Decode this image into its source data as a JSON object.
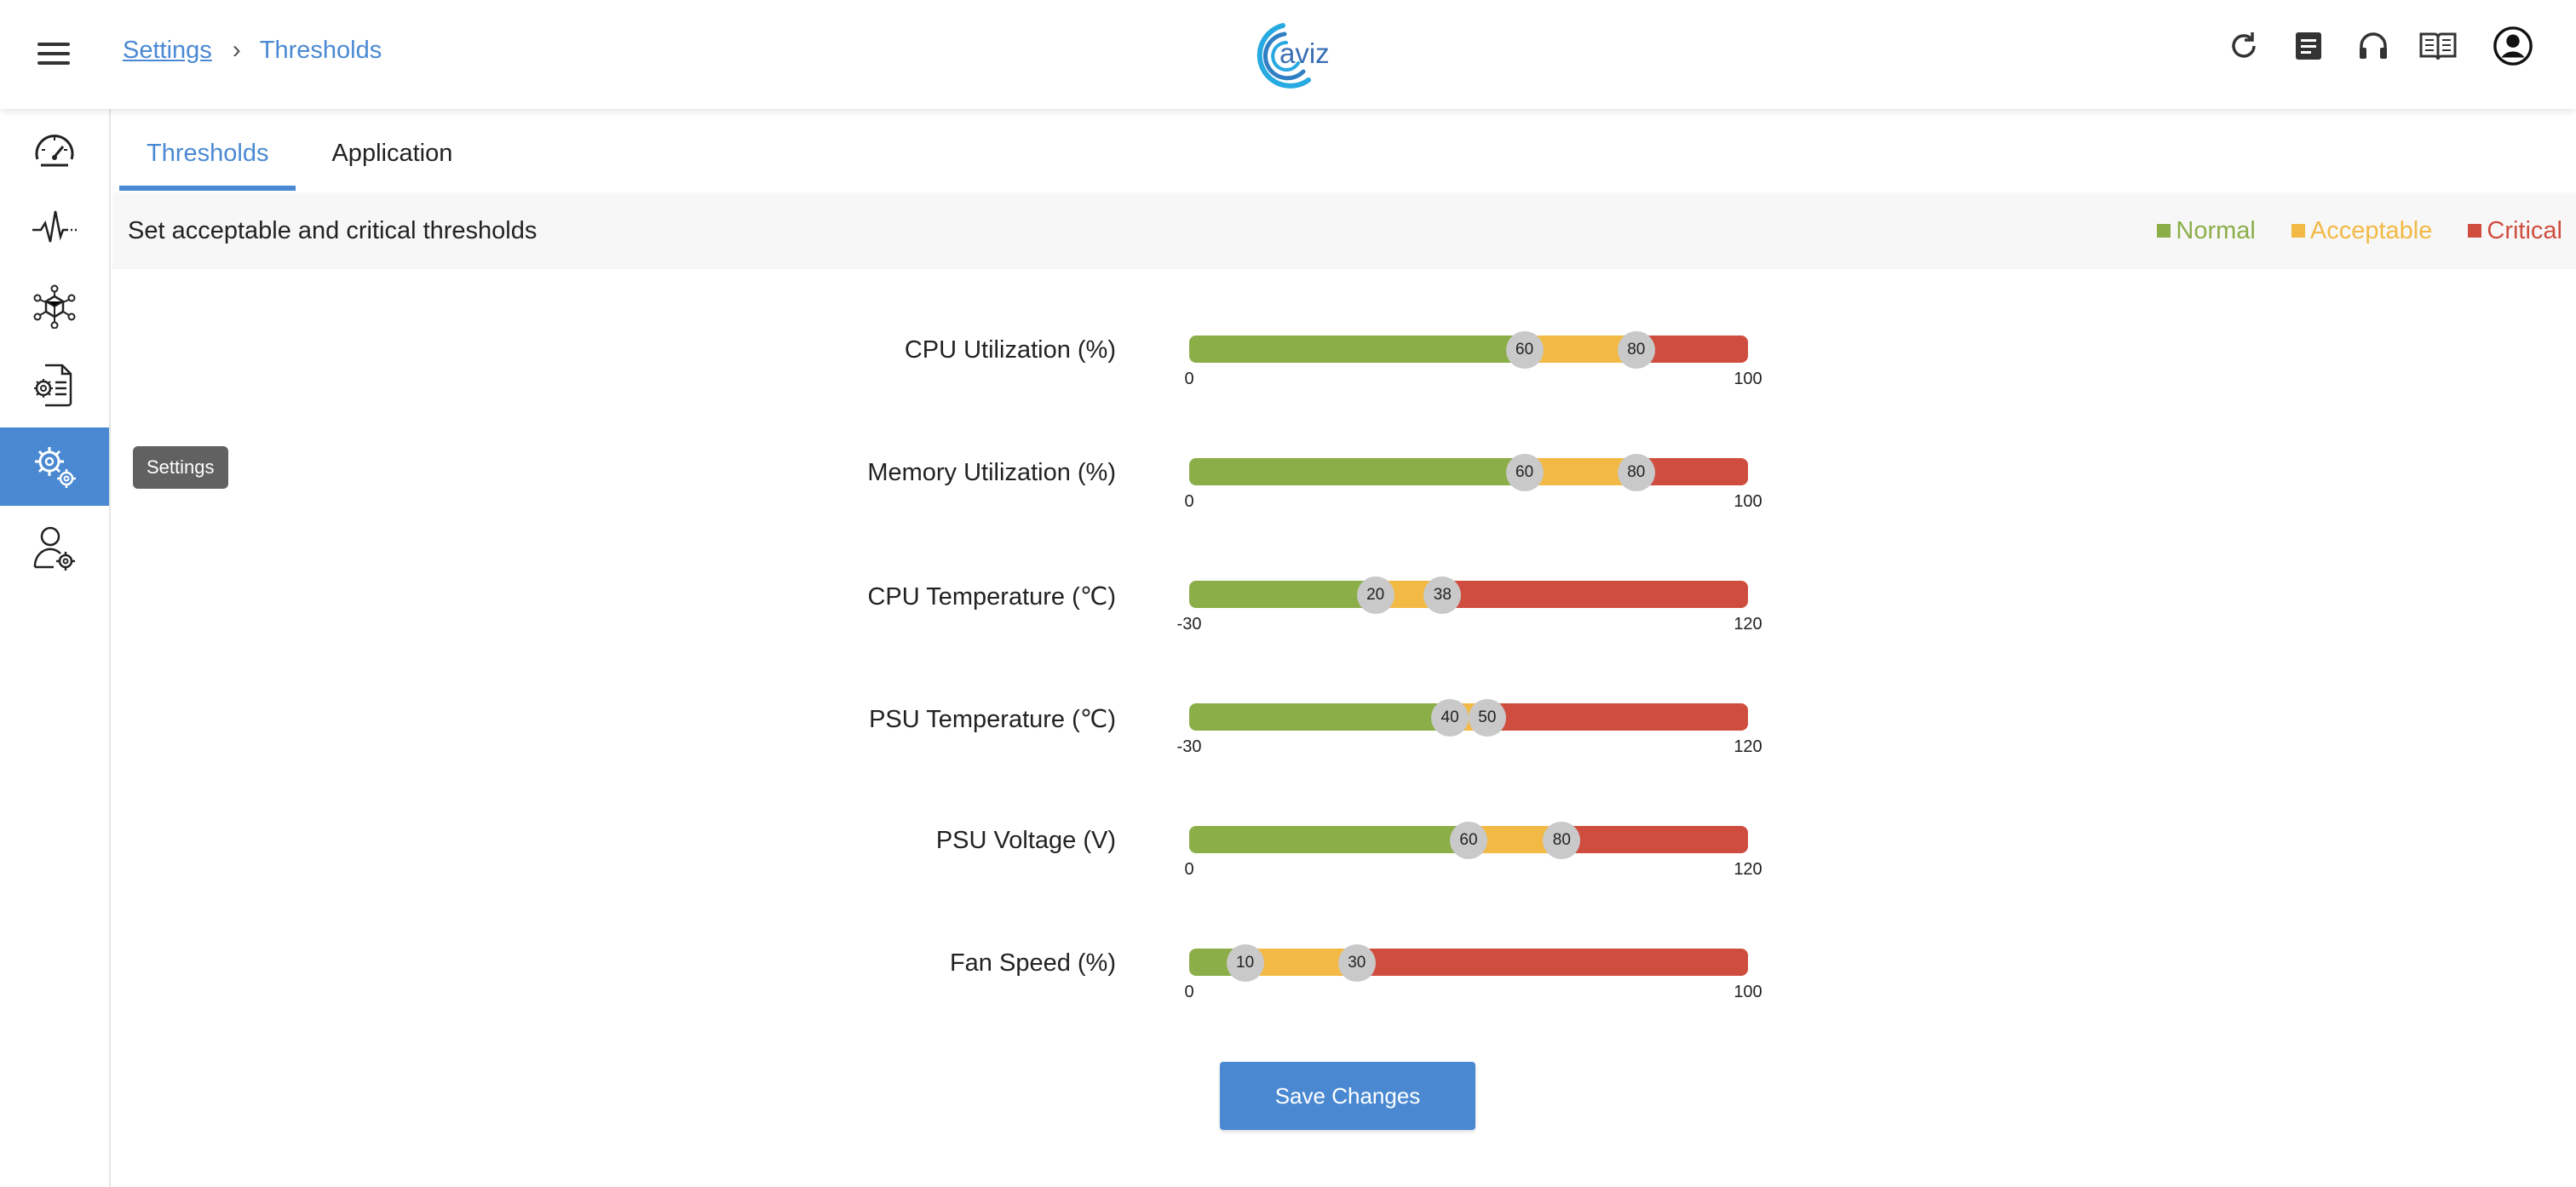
{
  "header": {
    "breadcrumb": {
      "parent": "Settings",
      "separator": "›",
      "current": "Thresholds"
    },
    "logo_text": "aviz",
    "icons": [
      "refresh-icon",
      "notes-icon",
      "headset-icon",
      "book-icon",
      "account-icon"
    ]
  },
  "sidebar": {
    "items": [
      {
        "icon": "dashboard-gauge-icon"
      },
      {
        "icon": "pulse-icon"
      },
      {
        "icon": "network-cube-icon"
      },
      {
        "icon": "config-document-icon"
      },
      {
        "icon": "settings-gears-icon",
        "active": true
      },
      {
        "icon": "user-settings-icon"
      }
    ],
    "tooltip": "Settings"
  },
  "tabs": [
    {
      "label": "Thresholds",
      "active": true
    },
    {
      "label": "Application",
      "active": false
    }
  ],
  "subheader": {
    "title": "Set acceptable and critical thresholds",
    "legend": [
      {
        "label": "Normal",
        "color": "#8bae48"
      },
      {
        "label": "Acceptable",
        "color": "#f2b944"
      },
      {
        "label": "Critical",
        "color": "#cf4d3f"
      }
    ]
  },
  "thresholds": [
    {
      "label": "CPU Utilization (%)",
      "min": 0,
      "max": 100,
      "low": 60,
      "high": 80,
      "min_label": "0",
      "max_label": "100",
      "low_label": "60",
      "high_label": "80"
    },
    {
      "label": "Memory Utilization (%)",
      "min": 0,
      "max": 100,
      "low": 60,
      "high": 80,
      "min_label": "0",
      "max_label": "100",
      "low_label": "60",
      "high_label": "80"
    },
    {
      "label": "CPU Temperature (℃)",
      "min": -30,
      "max": 120,
      "low": 20,
      "high": 38,
      "min_label": "-30",
      "max_label": "120",
      "low_label": "20",
      "high_label": "38"
    },
    {
      "label": "PSU Temperature (℃)",
      "min": -30,
      "max": 120,
      "low": 40,
      "high": 50,
      "min_label": "-30",
      "max_label": "120",
      "low_label": "40",
      "high_label": "50"
    },
    {
      "label": "PSU Voltage (V)",
      "min": 0,
      "max": 120,
      "low": 60,
      "high": 80,
      "min_label": "0",
      "max_label": "120",
      "low_label": "60",
      "high_label": "80"
    },
    {
      "label": "Fan Speed (%)",
      "min": 0,
      "max": 100,
      "low": 10,
      "high": 30,
      "min_label": "0",
      "max_label": "100",
      "low_label": "10",
      "high_label": "30"
    }
  ],
  "save_button": "Save Changes",
  "colors": {
    "accent": "#4a89d2",
    "normal": "#8bae48",
    "acceptable": "#f2b944",
    "critical": "#cf4d3f",
    "thumb": "#c9c9c9"
  }
}
